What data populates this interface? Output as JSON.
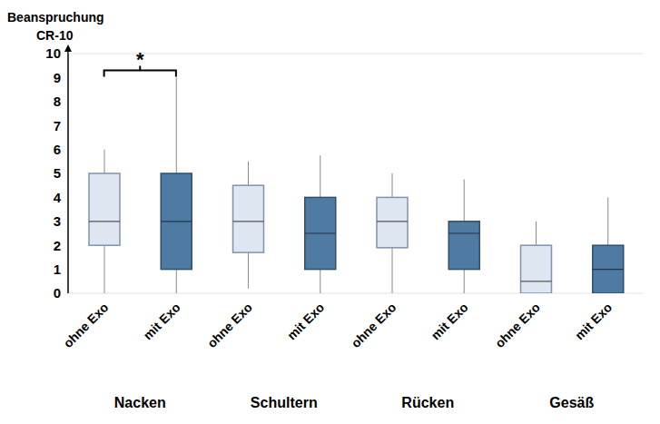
{
  "chart_data": {
    "type": "box",
    "y_label": [
      "Beanspruchung",
      "CR-10"
    ],
    "categories": [
      "Nacken",
      "Schultern",
      "Rücken",
      "Gesäß"
    ],
    "series": [
      {
        "name": "ohne Exo",
        "color": "#dde6f1",
        "values": [
          {
            "min": 0,
            "q1": 2,
            "median": 3,
            "q3": 5,
            "max": 6
          },
          {
            "min": 0.2,
            "q1": 1.7,
            "median": 3,
            "q3": 4.5,
            "max": 5.5
          },
          {
            "min": 0,
            "q1": 1.9,
            "median": 3,
            "q3": 4,
            "max": 5
          },
          {
            "min": 0,
            "q1": 0,
            "median": 0.5,
            "q3": 2,
            "max": 3
          }
        ]
      },
      {
        "name": "mit Exo",
        "color": "#4f7aa1",
        "values": [
          {
            "min": 0,
            "q1": 1,
            "median": 3,
            "q3": 5,
            "max": 9
          },
          {
            "min": 0,
            "q1": 1,
            "median": 2.5,
            "q3": 4,
            "max": 5.75
          },
          {
            "min": 0,
            "q1": 1,
            "median": 2.5,
            "q3": 3,
            "max": 4.75
          },
          {
            "min": 0,
            "q1": 0,
            "median": 1,
            "q3": 2,
            "max": 4
          }
        ]
      }
    ],
    "ylim": [
      0,
      10
    ],
    "yticks": [
      0,
      1,
      2,
      3,
      4,
      5,
      6,
      7,
      8,
      9,
      10
    ],
    "grid": true,
    "annotations": [
      {
        "text": "*",
        "category": "Nacken",
        "y": 9.3
      }
    ]
  }
}
